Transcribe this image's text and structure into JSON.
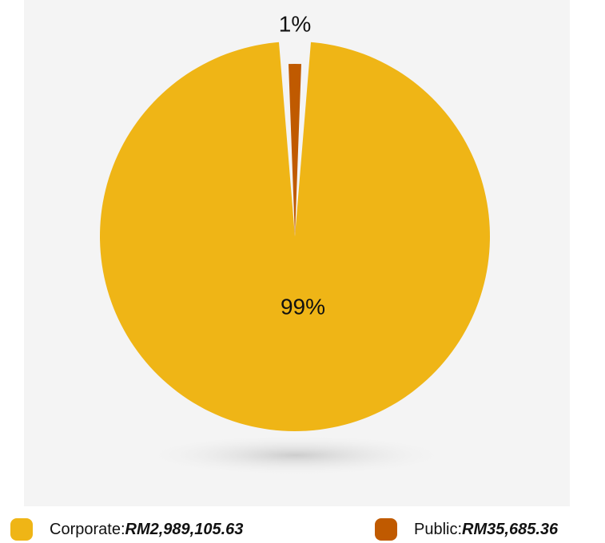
{
  "chart_data": {
    "type": "pie",
    "categories": [
      "Corporate",
      "Public"
    ],
    "values": [
      2989105.63,
      35685.36
    ],
    "colors": [
      "#EFB516",
      "#C05A00"
    ],
    "slice_labels": [
      "99%",
      "1%"
    ],
    "legend": {
      "placement": "bottom",
      "items": [
        {
          "name": "Corporate",
          "sep": ": ",
          "amount": "RM2,989,105.63",
          "color": "#EFB516"
        },
        {
          "name": "Public",
          "sep": ": ",
          "amount": "RM35,685.36",
          "color": "#C05A00"
        }
      ]
    }
  }
}
